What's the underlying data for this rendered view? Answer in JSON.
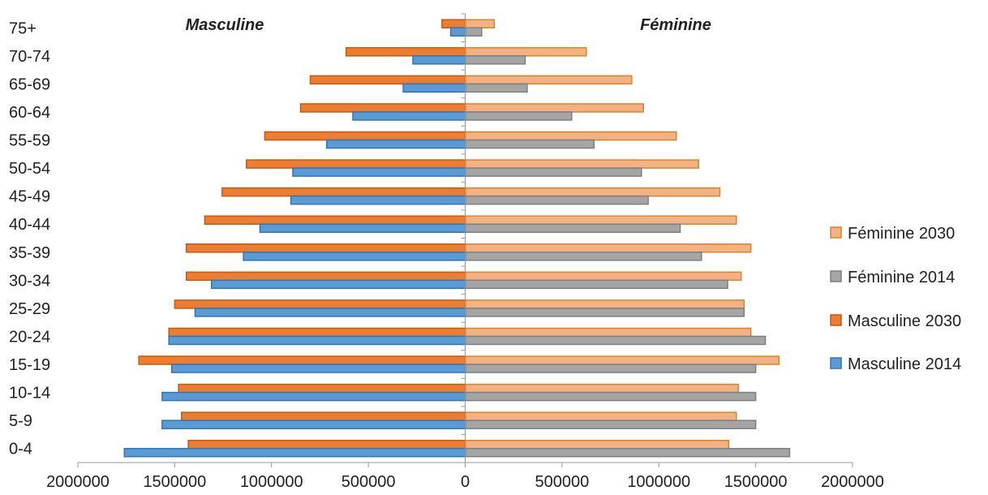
{
  "chart_data": {
    "type": "bar",
    "orientation": "horizontal",
    "layout": "population-pyramid",
    "categories": [
      "0-4",
      "5-9",
      "10-14",
      "15-19",
      "20-24",
      "25-29",
      "30-34",
      "35-39",
      "40-44",
      "45-49",
      "50-54",
      "55-59",
      "60-64",
      "65-69",
      "70-74",
      "75+"
    ],
    "series": [
      {
        "name": "Masculine 2014",
        "side": "left",
        "color": "#5b9bd5",
        "values": [
          1760000,
          1565000,
          1565000,
          1515000,
          1530000,
          1395000,
          1310000,
          1145000,
          1060000,
          900000,
          890000,
          715000,
          580000,
          320000,
          270000,
          75000
        ]
      },
      {
        "name": "Masculine 2030",
        "side": "left",
        "color": "#ed7d31",
        "values": [
          1430000,
          1465000,
          1480000,
          1685000,
          1530000,
          1500000,
          1440000,
          1440000,
          1345000,
          1255000,
          1130000,
          1035000,
          850000,
          800000,
          615000,
          120000
        ]
      },
      {
        "name": "Féminine 2014",
        "side": "right",
        "color": "#a5a5a5",
        "values": [
          1675000,
          1500000,
          1500000,
          1500000,
          1550000,
          1440000,
          1355000,
          1220000,
          1110000,
          945000,
          910000,
          665000,
          550000,
          320000,
          310000,
          85000
        ]
      },
      {
        "name": "Féminine 2030",
        "side": "right",
        "color": "#f4b183",
        "values": [
          1360000,
          1400000,
          1410000,
          1620000,
          1475000,
          1440000,
          1425000,
          1475000,
          1400000,
          1315000,
          1205000,
          1090000,
          920000,
          860000,
          625000,
          150000
        ]
      }
    ],
    "side_labels": {
      "left": "Masculine",
      "right": "Féminine"
    },
    "xlim": [
      -2000000,
      2000000
    ],
    "xticks": [
      -2000000,
      -1500000,
      -1000000,
      -500000,
      0,
      500000,
      1000000,
      1500000,
      2000000
    ],
    "xtick_labels": [
      "2000000",
      "1500000",
      "1000000",
      "500000",
      "0",
      "500000",
      "1000000",
      "1500000",
      "2000000"
    ],
    "legend_order": [
      "Féminine 2030",
      "Féminine 2014",
      "Masculine 2030",
      "Masculine 2014"
    ],
    "legend_position": "right",
    "grid": false
  }
}
